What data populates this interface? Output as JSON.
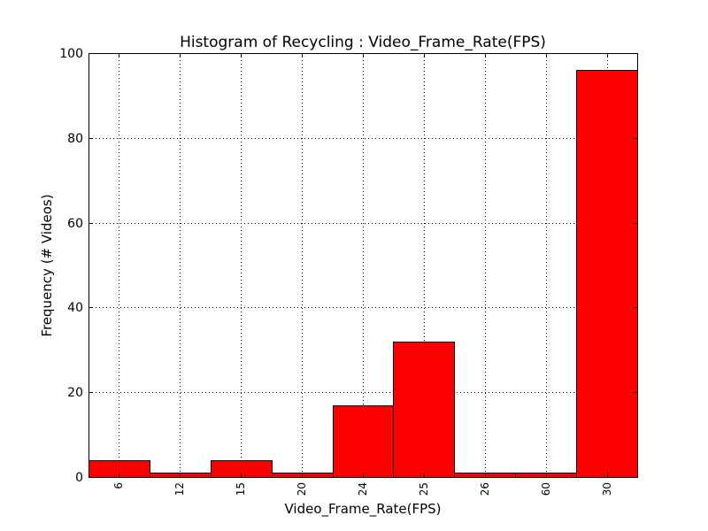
{
  "chart_data": {
    "type": "bar",
    "title": "Histogram of Recycling : Video_Frame_Rate(FPS)",
    "xlabel": "Video_Frame_Rate(FPS)",
    "ylabel": "Frequency (# Videos)",
    "categories": [
      "6",
      "12",
      "15",
      "20",
      "24",
      "25",
      "26",
      "60",
      "30"
    ],
    "values": [
      4,
      1,
      4,
      1,
      17,
      32,
      1,
      1,
      96
    ],
    "ylim": [
      0,
      100
    ],
    "yticks": [
      0,
      20,
      40,
      60,
      80,
      100
    ],
    "grid": true,
    "bar_color": "#ff0000",
    "edge_color": "#000000"
  }
}
